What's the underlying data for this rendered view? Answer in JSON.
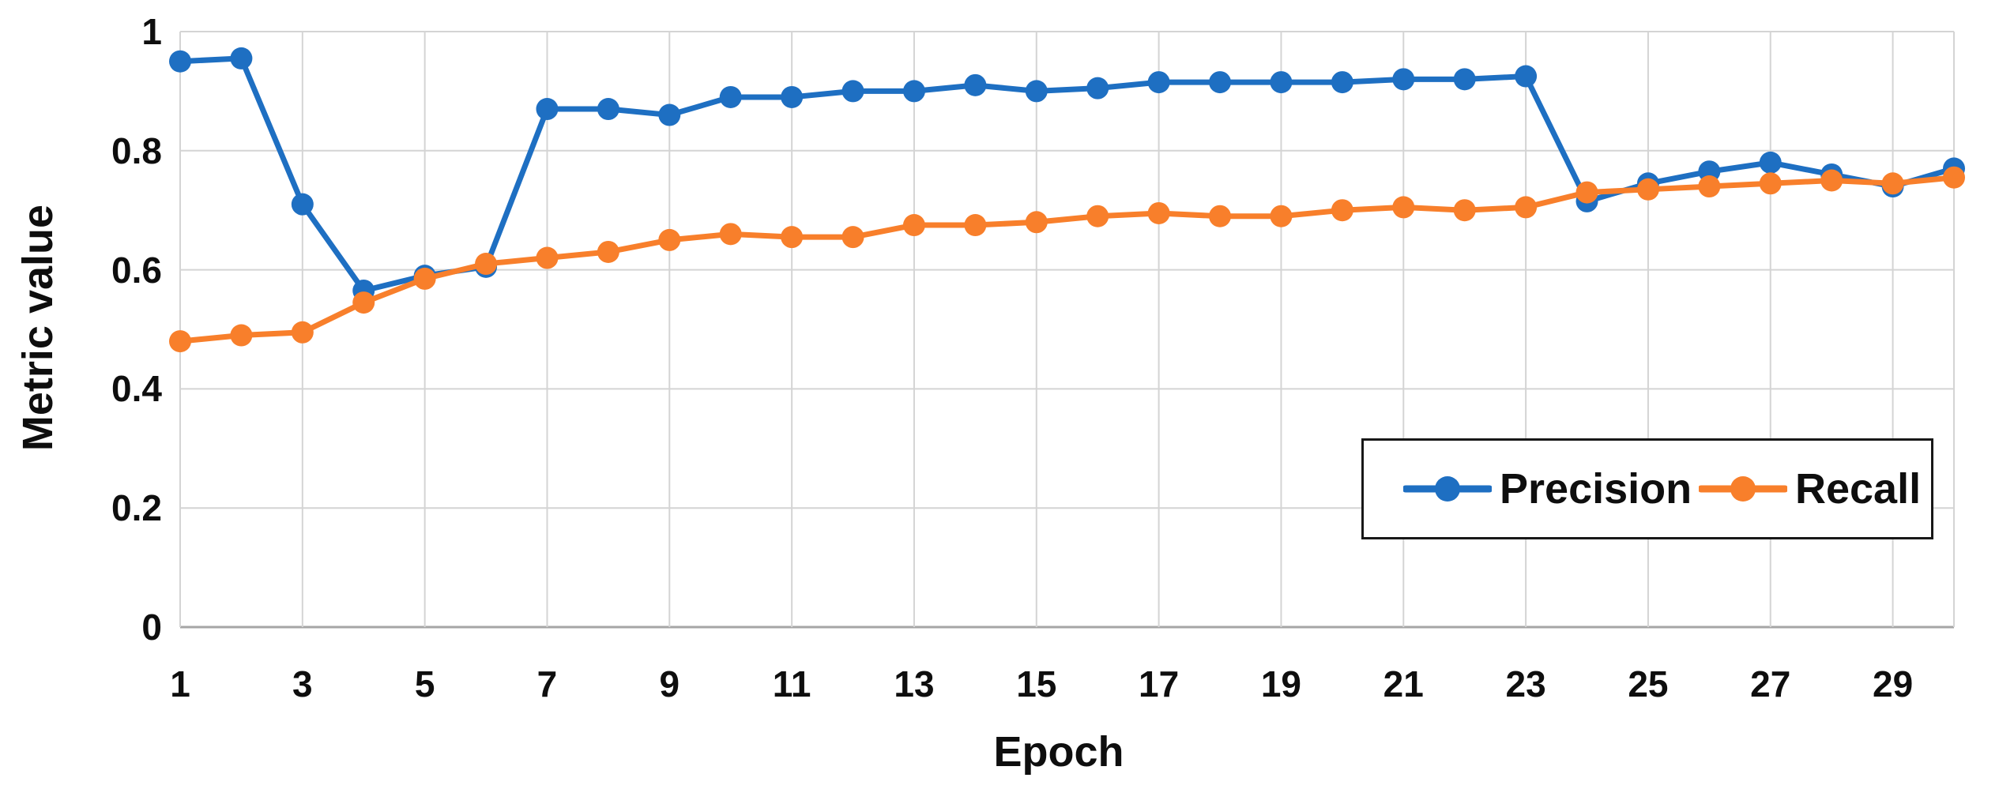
{
  "chart_data": {
    "type": "line",
    "title": "",
    "xlabel": "Epoch",
    "ylabel": "Metric value",
    "x": [
      1,
      2,
      3,
      4,
      5,
      6,
      7,
      8,
      9,
      10,
      11,
      12,
      13,
      14,
      15,
      16,
      17,
      18,
      19,
      20,
      21,
      22,
      23,
      24,
      25,
      26,
      27,
      28,
      29,
      30
    ],
    "series": [
      {
        "name": "Precision",
        "color": "#1e6fc2",
        "values": [
          0.95,
          0.955,
          0.71,
          0.565,
          0.59,
          0.605,
          0.87,
          0.87,
          0.86,
          0.89,
          0.89,
          0.9,
          0.9,
          0.91,
          0.9,
          0.905,
          0.915,
          0.915,
          0.915,
          0.915,
          0.92,
          0.92,
          0.925,
          0.715,
          0.745,
          0.765,
          0.78,
          0.76,
          0.74,
          0.77
        ]
      },
      {
        "name": "Recall",
        "color": "#f87f2b",
        "values": [
          0.48,
          0.49,
          0.495,
          0.545,
          0.585,
          0.61,
          0.62,
          0.63,
          0.65,
          0.66,
          0.655,
          0.655,
          0.675,
          0.675,
          0.68,
          0.69,
          0.695,
          0.69,
          0.69,
          0.7,
          0.705,
          0.7,
          0.705,
          0.73,
          0.735,
          0.74,
          0.745,
          0.75,
          0.745,
          0.755
        ]
      }
    ],
    "ylim": [
      0,
      1
    ],
    "y_ticks": [
      {
        "value": 0,
        "label": "0"
      },
      {
        "value": 0.2,
        "label": "0.2"
      },
      {
        "value": 0.4,
        "label": "0.4"
      },
      {
        "value": 0.6,
        "label": "0.6"
      },
      {
        "value": 0.8,
        "label": "0.8"
      },
      {
        "value": 1,
        "label": "1"
      }
    ],
    "x_ticks": [
      {
        "value": 1,
        "label": "1"
      },
      {
        "value": 3,
        "label": "3"
      },
      {
        "value": 5,
        "label": "5"
      },
      {
        "value": 7,
        "label": "7"
      },
      {
        "value": 9,
        "label": "9"
      },
      {
        "value": 11,
        "label": "11"
      },
      {
        "value": 13,
        "label": "13"
      },
      {
        "value": 15,
        "label": "15"
      },
      {
        "value": 17,
        "label": "17"
      },
      {
        "value": 19,
        "label": "19"
      },
      {
        "value": 21,
        "label": "21"
      },
      {
        "value": 23,
        "label": "23"
      },
      {
        "value": 25,
        "label": "25"
      },
      {
        "value": 27,
        "label": "27"
      },
      {
        "value": 29,
        "label": "29"
      }
    ],
    "grid": true,
    "legend_position": "inside-right",
    "colors": {
      "gridline": "#d4d4d4",
      "axis_line": "#a6a6a6",
      "text": "#0e0e0e",
      "legend_border": "#181818",
      "background": "#ffffff"
    }
  }
}
